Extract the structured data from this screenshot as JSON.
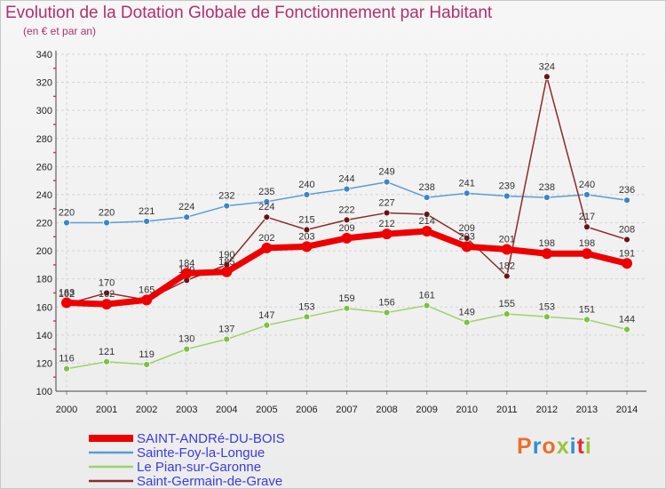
{
  "header": {
    "title": "Evolution de la Dotation Globale de Fonctionnement par Habitant",
    "subtitle": "(en € et par an)"
  },
  "logo": {
    "text": "Proxiti",
    "colors": [
      "#e8702a",
      "#2f8ed8",
      "#e8702a",
      "#9bc53d",
      "#2f8ed8",
      "#e03030",
      "#9bc53d"
    ]
  },
  "chart_data": {
    "type": "line",
    "title": "Evolution de la Dotation Globale de Fonctionnement par Habitant",
    "subtitle": "(en € et par an)",
    "xlabel": "",
    "ylabel": "",
    "ylim": [
      100,
      340
    ],
    "yticks": [
      100,
      120,
      140,
      160,
      180,
      200,
      220,
      240,
      260,
      280,
      300,
      320,
      340
    ],
    "grid": "horizontal dashed",
    "legend_position": "bottom-left",
    "x": [
      "2000",
      "2001",
      "2002",
      "2003",
      "2004",
      "2005",
      "2006",
      "2007",
      "2008",
      "2009",
      "2010",
      "2011",
      "2012",
      "2013",
      "2014"
    ],
    "series": [
      {
        "name": "SAINT-ANDRé-DU-BOIS",
        "color": "#ee0000",
        "marker_color": "#ee0000",
        "emphasis": true,
        "values": [
          163,
          162,
          165,
          184,
          185,
          202,
          203,
          209,
          212,
          214,
          203,
          201,
          198,
          198,
          191
        ],
        "labels": [
          true,
          true,
          true,
          true,
          true,
          true,
          true,
          true,
          true,
          true,
          true,
          true,
          true,
          true,
          true
        ]
      },
      {
        "name": "Sainte-Foy-la-Longue",
        "color": "#5b9bd5",
        "marker_color": "#3a86c8",
        "emphasis": false,
        "values": [
          220,
          220,
          221,
          224,
          232,
          235,
          240,
          244,
          249,
          238,
          241,
          239,
          238,
          240,
          236
        ],
        "labels": [
          true,
          true,
          true,
          true,
          true,
          true,
          true,
          true,
          true,
          true,
          true,
          true,
          true,
          true,
          true
        ]
      },
      {
        "name": "Le Pian-sur-Garonne",
        "color": "#9ed26a",
        "marker_color": "#7cc242",
        "emphasis": false,
        "values": [
          116,
          121,
          119,
          130,
          137,
          147,
          153,
          159,
          156,
          161,
          149,
          155,
          153,
          151,
          144
        ],
        "labels": [
          true,
          true,
          true,
          true,
          true,
          true,
          true,
          true,
          true,
          true,
          true,
          true,
          true,
          true,
          true
        ]
      },
      {
        "name": "Saint-Germain-de-Grave",
        "color": "#8b2b2b",
        "marker_color": "#6b1414",
        "emphasis": false,
        "values": [
          162,
          170,
          165,
          179,
          190,
          224,
          215,
          222,
          227,
          226,
          209,
          182,
          324,
          217,
          208
        ],
        "labels": [
          true,
          true,
          false,
          true,
          true,
          true,
          true,
          true,
          true,
          false,
          true,
          true,
          true,
          true,
          true
        ]
      }
    ]
  }
}
